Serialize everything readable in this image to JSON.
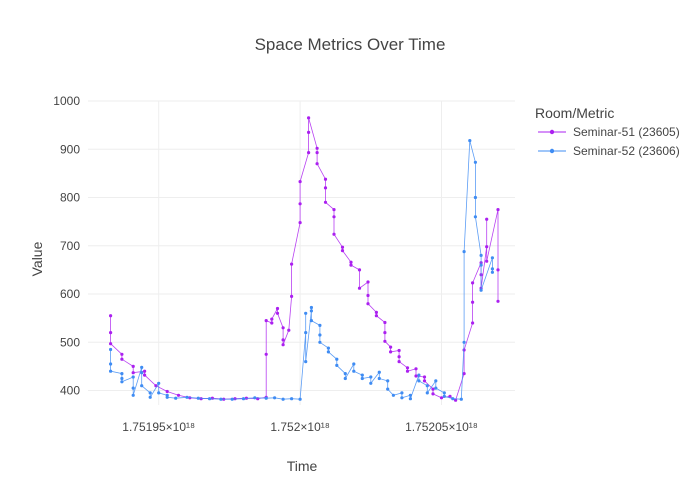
{
  "chart_data": {
    "type": "line",
    "title": "Space Metrics Over Time",
    "xlabel": "Time",
    "ylabel": "Value",
    "xlim": [
      1.751925e+18,
      1.752076e+18
    ],
    "ylim": [
      370,
      1000
    ],
    "x_ticks": [
      1.75195e+18,
      1.752e+18,
      1.75205e+18
    ],
    "x_tick_labels": [
      "1.75195×10¹⁸",
      "1.752×10¹⁸",
      "1.75205×10¹⁸"
    ],
    "y_ticks": [
      400,
      500,
      600,
      700,
      800,
      900,
      1000
    ],
    "y_tick_labels": [
      "400",
      "500",
      "600",
      "700",
      "800",
      "900",
      "1000"
    ],
    "grid": true,
    "legend": {
      "title": "Room/Metric",
      "placement": "top-right"
    },
    "series": [
      {
        "name": "Seminar-51 (23605)",
        "color": "#ab20f0",
        "points": [
          [
            1.751933e+18,
            555
          ],
          [
            1.751933e+18,
            520
          ],
          [
            1.751933e+18,
            497
          ],
          [
            1.751937e+18,
            475
          ],
          [
            1.751937e+18,
            465
          ],
          [
            1.751941e+18,
            450
          ],
          [
            1.751941e+18,
            437
          ],
          [
            1.751945e+18,
            440
          ],
          [
            1.751945e+18,
            432
          ],
          [
            1.751949e+18,
            410
          ],
          [
            1.751953e+18,
            398
          ],
          [
            1.751957e+18,
            390
          ],
          [
            1.751961e+18,
            385
          ],
          [
            1.751965e+18,
            383
          ],
          [
            1.751969e+18,
            384
          ],
          [
            1.751973e+18,
            382
          ],
          [
            1.751977e+18,
            383
          ],
          [
            1.751981e+18,
            384
          ],
          [
            1.751985e+18,
            383
          ],
          [
            1.751988e+18,
            386
          ],
          [
            1.751988e+18,
            475
          ],
          [
            1.751988e+18,
            545
          ],
          [
            1.75199e+18,
            540
          ],
          [
            1.75199e+18,
            548
          ],
          [
            1.751992e+18,
            570
          ],
          [
            1.751992e+18,
            560
          ],
          [
            1.751994e+18,
            530
          ],
          [
            1.751994e+18,
            505
          ],
          [
            1.751994e+18,
            495
          ],
          [
            1.751996e+18,
            525
          ],
          [
            1.751997e+18,
            595
          ],
          [
            1.751997e+18,
            662
          ],
          [
            1.752e+18,
            748
          ],
          [
            1.752e+18,
            787
          ],
          [
            1.752e+18,
            833
          ],
          [
            1.752003e+18,
            893
          ],
          [
            1.752003e+18,
            935
          ],
          [
            1.752003e+18,
            965
          ],
          [
            1.752006e+18,
            902
          ],
          [
            1.752006e+18,
            893
          ],
          [
            1.752006e+18,
            870
          ],
          [
            1.752009e+18,
            838
          ],
          [
            1.752009e+18,
            820
          ],
          [
            1.752009e+18,
            790
          ],
          [
            1.752012e+18,
            775
          ],
          [
            1.752012e+18,
            760
          ],
          [
            1.752012e+18,
            724
          ],
          [
            1.752015e+18,
            697
          ],
          [
            1.752015e+18,
            690
          ],
          [
            1.752018e+18,
            666
          ],
          [
            1.752018e+18,
            660
          ],
          [
            1.752021e+18,
            650
          ],
          [
            1.752021e+18,
            612
          ],
          [
            1.752024e+18,
            625
          ],
          [
            1.752024e+18,
            597
          ],
          [
            1.752024e+18,
            580
          ],
          [
            1.752027e+18,
            562
          ],
          [
            1.752027e+18,
            555
          ],
          [
            1.75203e+18,
            541
          ],
          [
            1.75203e+18,
            520
          ],
          [
            1.75203e+18,
            502
          ],
          [
            1.752032e+18,
            490
          ],
          [
            1.752032e+18,
            480
          ],
          [
            1.752035e+18,
            483
          ],
          [
            1.752035e+18,
            470
          ],
          [
            1.752035e+18,
            460
          ],
          [
            1.752038e+18,
            447
          ],
          [
            1.752038e+18,
            440
          ],
          [
            1.752041e+18,
            445
          ],
          [
            1.752041e+18,
            430
          ],
          [
            1.752044e+18,
            428
          ],
          [
            1.752044e+18,
            420
          ],
          [
            1.752047e+18,
            403
          ],
          [
            1.752047e+18,
            393
          ],
          [
            1.75205e+18,
            385
          ],
          [
            1.752053e+18,
            388
          ],
          [
            1.752055e+18,
            380
          ],
          [
            1.752058e+18,
            435
          ],
          [
            1.752058e+18,
            484
          ],
          [
            1.752061e+18,
            540
          ],
          [
            1.752061e+18,
            583
          ],
          [
            1.752061e+18,
            623
          ],
          [
            1.752064e+18,
            665
          ],
          [
            1.752064e+18,
            640
          ],
          [
            1.752064e+18,
            612
          ],
          [
            1.752066e+18,
            698
          ],
          [
            1.752066e+18,
            755
          ],
          [
            1.752066e+18,
            668
          ],
          [
            1.75207e+18,
            775
          ],
          [
            1.75207e+18,
            650
          ],
          [
            1.75207e+18,
            585
          ]
        ]
      },
      {
        "name": "Seminar-52 (23606)",
        "color": "#3f8cf3",
        "points": [
          [
            1.751933e+18,
            485
          ],
          [
            1.751933e+18,
            455
          ],
          [
            1.751933e+18,
            440
          ],
          [
            1.751937e+18,
            435
          ],
          [
            1.751937e+18,
            425
          ],
          [
            1.751937e+18,
            418
          ],
          [
            1.751941e+18,
            428
          ],
          [
            1.751941e+18,
            405
          ],
          [
            1.751941e+18,
            390
          ],
          [
            1.751944e+18,
            448
          ],
          [
            1.751944e+18,
            437
          ],
          [
            1.751944e+18,
            410
          ],
          [
            1.751947e+18,
            395
          ],
          [
            1.751947e+18,
            386
          ],
          [
            1.75195e+18,
            415
          ],
          [
            1.75195e+18,
            395
          ],
          [
            1.751953e+18,
            390
          ],
          [
            1.751953e+18,
            386
          ],
          [
            1.751956e+18,
            384
          ],
          [
            1.75196e+18,
            386
          ],
          [
            1.751964e+18,
            384
          ],
          [
            1.751968e+18,
            383
          ],
          [
            1.751972e+18,
            382
          ],
          [
            1.751976e+18,
            382
          ],
          [
            1.75198e+18,
            383
          ],
          [
            1.751984e+18,
            385
          ],
          [
            1.751988e+18,
            384
          ],
          [
            1.751991e+18,
            385
          ],
          [
            1.751994e+18,
            382
          ],
          [
            1.751997e+18,
            383
          ],
          [
            1.752e+18,
            382
          ],
          [
            1.752002e+18,
            520
          ],
          [
            1.752002e+18,
            560
          ],
          [
            1.752002e+18,
            460
          ],
          [
            1.752004e+18,
            565
          ],
          [
            1.752004e+18,
            572
          ],
          [
            1.752004e+18,
            545
          ],
          [
            1.752007e+18,
            535
          ],
          [
            1.752007e+18,
            515
          ],
          [
            1.752007e+18,
            500
          ],
          [
            1.75201e+18,
            488
          ],
          [
            1.75201e+18,
            480
          ],
          [
            1.752013e+18,
            465
          ],
          [
            1.752013e+18,
            452
          ],
          [
            1.752016e+18,
            435
          ],
          [
            1.752016e+18,
            425
          ],
          [
            1.752019e+18,
            455
          ],
          [
            1.752019e+18,
            440
          ],
          [
            1.752022e+18,
            432
          ],
          [
            1.752022e+18,
            425
          ],
          [
            1.752025e+18,
            428
          ],
          [
            1.752025e+18,
            415
          ],
          [
            1.752028e+18,
            438
          ],
          [
            1.752028e+18,
            425
          ],
          [
            1.752031e+18,
            420
          ],
          [
            1.752031e+18,
            403
          ],
          [
            1.752033e+18,
            390
          ],
          [
            1.752036e+18,
            395
          ],
          [
            1.752036e+18,
            385
          ],
          [
            1.752039e+18,
            390
          ],
          [
            1.752039e+18,
            383
          ],
          [
            1.752042e+18,
            432
          ],
          [
            1.752042e+18,
            420
          ],
          [
            1.752045e+18,
            410
          ],
          [
            1.752045e+18,
            395
          ],
          [
            1.752048e+18,
            420
          ],
          [
            1.752048e+18,
            405
          ],
          [
            1.752051e+18,
            395
          ],
          [
            1.752051e+18,
            388
          ],
          [
            1.752054e+18,
            383
          ],
          [
            1.752057e+18,
            382
          ],
          [
            1.752058e+18,
            500
          ],
          [
            1.752058e+18,
            688
          ],
          [
            1.75206e+18,
            918
          ],
          [
            1.752062e+18,
            873
          ],
          [
            1.752062e+18,
            800
          ],
          [
            1.752062e+18,
            760
          ],
          [
            1.752064e+18,
            680
          ],
          [
            1.752064e+18,
            660
          ],
          [
            1.752064e+18,
            608
          ],
          [
            1.752068e+18,
            675
          ],
          [
            1.752068e+18,
            652
          ],
          [
            1.752068e+18,
            645
          ]
        ]
      }
    ]
  }
}
